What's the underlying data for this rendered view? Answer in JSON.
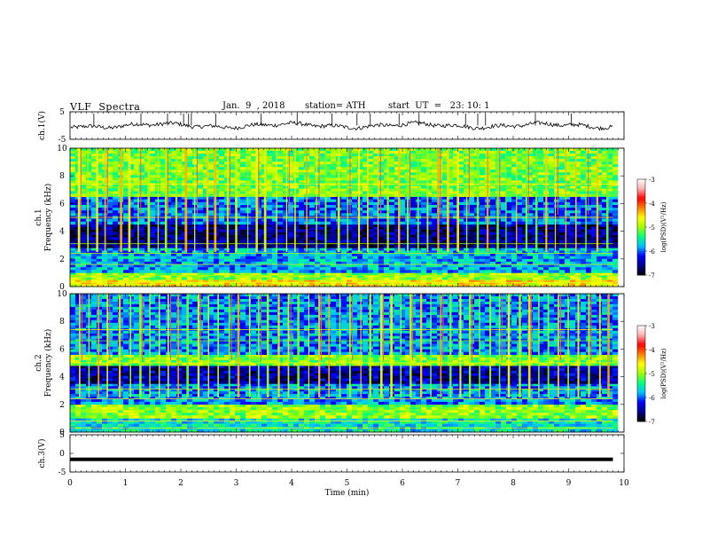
{
  "header": {
    "title": "VLF  Spectra",
    "date": "Jan.  9  , 2018",
    "station": "station= ATH",
    "start": "start  UT  =   23: 10: 1"
  },
  "colors": {
    "trace": "#000000",
    "cmap": [
      "#000000",
      "#00008b",
      "#0000ff",
      "#00c0ff",
      "#00ff80",
      "#a0ff00",
      "#ffff00",
      "#ff8000",
      "#ff0000",
      "#ffb0b0",
      "#ffffff"
    ]
  },
  "chart_data": [
    {
      "type": "line",
      "panel": "ch1-waveform",
      "ylabel": "ch.1(V)",
      "ylim": [
        -5,
        5
      ],
      "ytick_labels": [
        "5",
        "-5"
      ],
      "xlim": [
        0,
        10
      ],
      "description_level_V": 0.0,
      "spike_times_min": [
        0.43,
        1.28,
        1.76,
        2.05,
        2.14,
        2.19,
        2.63,
        3.45,
        4.1,
        4.73,
        5.18,
        5.42,
        5.94,
        6.3,
        7.14,
        7.36,
        7.5,
        8.4,
        9.05
      ],
      "series_end_min": 9.8
    },
    {
      "type": "heatmap",
      "panel": "ch1-spectrogram",
      "ylabel": "ch.1\nFrequency  (kHz)",
      "y_axis_label_lines": [
        "ch.1",
        "Frequency  (kHz)"
      ],
      "ylim": [
        0,
        10
      ],
      "ytick_labels": [
        "0",
        "2",
        "4",
        "6",
        "8",
        "10"
      ],
      "xlim": [
        0,
        10
      ],
      "series_end_min": 9.8,
      "colorbar": {
        "label": "log(PSD)(V²/Hz)",
        "range": [
          -7,
          -3
        ],
        "tick_labels": [
          "-3",
          "-4",
          "-5",
          "-6",
          "-7"
        ]
      },
      "band_levels_by_kHz": [
        {
          "f": [
            0.0,
            0.5
          ],
          "level": -4.6
        },
        {
          "f": [
            0.5,
            1.0
          ],
          "level": -5.0
        },
        {
          "f": [
            1.0,
            2.8
          ],
          "level": -5.8
        },
        {
          "f": [
            2.8,
            4.5
          ],
          "level": -6.6
        },
        {
          "f": [
            4.5,
            6.5
          ],
          "level": -6.0
        },
        {
          "f": [
            6.5,
            10.0
          ],
          "level": -5.1
        }
      ],
      "spheric_times_min": [
        0.14,
        0.31,
        0.47,
        0.62,
        0.9,
        1.05,
        1.22,
        1.4,
        1.58,
        1.71,
        1.9,
        2.07,
        2.24,
        2.46,
        2.6,
        2.83,
        2.98,
        3.2,
        3.35,
        3.5,
        3.72,
        3.9,
        4.05,
        4.26,
        4.44,
        4.6,
        4.83,
        5.0,
        5.2,
        5.36,
        5.55,
        5.72,
        5.92,
        6.08,
        6.27,
        6.44,
        6.63,
        6.8,
        6.98,
        7.15,
        7.34,
        7.52,
        7.7,
        7.86,
        8.05,
        8.22,
        8.4,
        8.58,
        8.75,
        8.94,
        9.12,
        9.3,
        9.5,
        9.68
      ]
    },
    {
      "type": "heatmap",
      "panel": "ch2-spectrogram",
      "ylabel": "ch.2\nFrequency  (kHz)",
      "y_axis_label_lines": [
        "ch.2",
        "Frequency  (kHz)"
      ],
      "ylim": [
        0,
        10
      ],
      "ytick_labels": [
        "0",
        "2",
        "4",
        "6",
        "8",
        "10"
      ],
      "xlim": [
        0,
        10
      ],
      "series_end_min": 9.8,
      "colorbar": {
        "label": "log(PSD)(V²/Hz)",
        "range": [
          -7,
          -3
        ],
        "tick_labels": [
          "-3",
          "-4",
          "-5",
          "-6",
          "-7"
        ]
      },
      "band_levels_by_kHz": [
        {
          "f": [
            0.0,
            1.0
          ],
          "level": -5.6
        },
        {
          "f": [
            1.0,
            2.0
          ],
          "level": -5.0
        },
        {
          "f": [
            2.0,
            3.5
          ],
          "level": -5.9
        },
        {
          "f": [
            3.5,
            4.8
          ],
          "level": -6.5
        },
        {
          "f": [
            4.8,
            5.6
          ],
          "level": -5.1
        },
        {
          "f": [
            5.6,
            10.0
          ],
          "level": -5.9
        }
      ],
      "spheric_times_min": [
        0.16,
        0.33,
        0.5,
        0.66,
        0.88,
        1.08,
        1.25,
        1.43,
        1.6,
        1.76,
        1.94,
        2.1,
        2.3,
        2.49,
        2.66,
        2.86,
        3.02,
        3.23,
        3.39,
        3.55,
        3.75,
        3.93,
        4.1,
        4.3,
        4.48,
        4.66,
        4.86,
        5.04,
        5.24,
        5.4,
        5.6,
        5.78,
        5.96,
        6.13,
        6.32,
        6.5,
        6.68,
        6.85,
        7.03,
        7.2,
        7.38,
        7.57,
        7.74,
        7.9,
        8.1,
        8.27,
        8.45,
        8.62,
        8.8,
        8.98,
        9.16,
        9.35,
        9.55,
        9.7
      ]
    },
    {
      "type": "line",
      "panel": "ch3-waveform",
      "ylabel": "ch.3(V)",
      "ylim": [
        -5,
        5
      ],
      "ytick_labels": [
        "5",
        "0",
        "-5"
      ],
      "xlim": [
        0,
        10
      ],
      "level_V": -1.6,
      "series_end_min": 9.8,
      "xlabel": "Time  (min)",
      "xtick_labels": [
        "0",
        "1",
        "2",
        "3",
        "4",
        "5",
        "6",
        "7",
        "8",
        "9",
        "10"
      ]
    }
  ]
}
